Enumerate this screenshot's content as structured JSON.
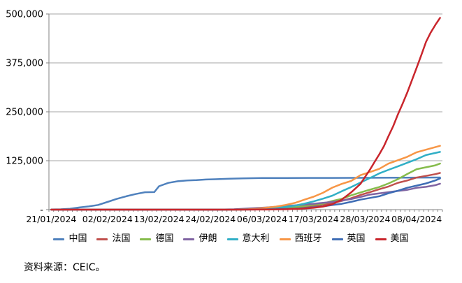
{
  "source_note": "资料来源：CEIC。",
  "colors": {
    "gridline": "#A6A6A6",
    "axis": "#808080",
    "text": "#000000",
    "background": "#FFFFFF"
  },
  "chart_data": {
    "type": "line",
    "title": "",
    "xlabel": "",
    "ylabel": "",
    "grid": true,
    "legend_position": "bottom",
    "y_axis": {
      "min": 0,
      "max": 500000,
      "tick_interval": 125000,
      "tick_labels_bottom_to_top": [
        "-",
        "125,000",
        "250,000",
        "375,000",
        "500,000"
      ]
    },
    "x_axis": {
      "slots": 84,
      "minor_tick_every_days": 1,
      "tick_labels": [
        {
          "day": 0,
          "label": "21/01/2024"
        },
        {
          "day": 12,
          "label": "02/02/2024"
        },
        {
          "day": 23,
          "label": "13/02/2024"
        },
        {
          "day": 34,
          "label": "24/02/2024"
        },
        {
          "day": 45,
          "label": "06/03/2024"
        },
        {
          "day": 56,
          "label": "17/03/2024"
        },
        {
          "day": 67,
          "label": "28/03/2024"
        },
        {
          "day": 78,
          "label": "08/04/2024"
        }
      ]
    },
    "series": [
      {
        "id": "china",
        "name": "中国",
        "color": "#4F81BD",
        "points": [
          [
            0,
            440
          ],
          [
            2,
            920
          ],
          [
            4,
            2075
          ],
          [
            6,
            5509
          ],
          [
            8,
            8141
          ],
          [
            10,
            11891
          ],
          [
            12,
            19716
          ],
          [
            14,
            27440
          ],
          [
            16,
            34110
          ],
          [
            18,
            39829
          ],
          [
            20,
            44386
          ],
          [
            22,
            44759
          ],
          [
            23,
            59895
          ],
          [
            25,
            68413
          ],
          [
            27,
            72434
          ],
          [
            29,
            74619
          ],
          [
            31,
            75550
          ],
          [
            33,
            77022
          ],
          [
            35,
            77754
          ],
          [
            38,
            78928
          ],
          [
            41,
            80026
          ],
          [
            45,
            80652
          ],
          [
            50,
            80757
          ],
          [
            55,
            80991
          ],
          [
            60,
            81054
          ],
          [
            65,
            81285
          ],
          [
            70,
            81470
          ],
          [
            75,
            81669
          ],
          [
            80,
            81907
          ],
          [
            83,
            82160
          ]
        ]
      },
      {
        "id": "france",
        "name": "法国",
        "color": "#C0504D",
        "points": [
          [
            0,
            0
          ],
          [
            20,
            11
          ],
          [
            30,
            57
          ],
          [
            36,
            100
          ],
          [
            39,
            191
          ],
          [
            42,
            653
          ],
          [
            45,
            949
          ],
          [
            48,
            1784
          ],
          [
            51,
            3661
          ],
          [
            54,
            6633
          ],
          [
            56,
            9134
          ],
          [
            58,
            12612
          ],
          [
            60,
            16689
          ],
          [
            62,
            22304
          ],
          [
            64,
            29155
          ],
          [
            66,
            37575
          ],
          [
            68,
            44550
          ],
          [
            70,
            52128
          ],
          [
            72,
            59105
          ],
          [
            74,
            68605
          ],
          [
            76,
            74390
          ],
          [
            78,
            82048
          ],
          [
            80,
            86334
          ],
          [
            82,
            90676
          ],
          [
            83,
            93790
          ]
        ]
      },
      {
        "id": "germany",
        "name": "德国",
        "color": "#86BC4C",
        "points": [
          [
            0,
            0
          ],
          [
            7,
            4
          ],
          [
            14,
            12
          ],
          [
            21,
            16
          ],
          [
            28,
            16
          ],
          [
            32,
            26
          ],
          [
            35,
            48
          ],
          [
            38,
            79
          ],
          [
            41,
            196
          ],
          [
            44,
            670
          ],
          [
            47,
            1457
          ],
          [
            50,
            3675
          ],
          [
            53,
            7272
          ],
          [
            56,
            12327
          ],
          [
            58,
            15320
          ],
          [
            60,
            22213
          ],
          [
            62,
            27436
          ],
          [
            64,
            36508
          ],
          [
            66,
            43938
          ],
          [
            68,
            50871
          ],
          [
            70,
            57695
          ],
          [
            72,
            67051
          ],
          [
            74,
            77872
          ],
          [
            76,
            91159
          ],
          [
            78,
            103374
          ],
          [
            80,
            108202
          ],
          [
            82,
            113296
          ],
          [
            83,
            117658
          ]
        ]
      },
      {
        "id": "iran",
        "name": "伊朗",
        "color": "#8064A2",
        "points": [
          [
            0,
            0
          ],
          [
            28,
            0
          ],
          [
            30,
            2
          ],
          [
            33,
            43
          ],
          [
            36,
            245
          ],
          [
            39,
            978
          ],
          [
            42,
            2922
          ],
          [
            45,
            4747
          ],
          [
            48,
            7161
          ],
          [
            51,
            10075
          ],
          [
            54,
            12729
          ],
          [
            56,
            14991
          ],
          [
            58,
            17361
          ],
          [
            60,
            19644
          ],
          [
            62,
            23049
          ],
          [
            64,
            27017
          ],
          [
            66,
            32332
          ],
          [
            68,
            38309
          ],
          [
            70,
            41495
          ],
          [
            72,
            44605
          ],
          [
            74,
            47593
          ],
          [
            76,
            50468
          ],
          [
            78,
            55743
          ],
          [
            80,
            58226
          ],
          [
            82,
            62589
          ],
          [
            83,
            66200
          ]
        ]
      },
      {
        "id": "italy",
        "name": "意大利",
        "color": "#31AFC6",
        "points": [
          [
            0,
            0
          ],
          [
            10,
            2
          ],
          [
            20,
            3
          ],
          [
            30,
            3
          ],
          [
            33,
            20
          ],
          [
            36,
            62
          ],
          [
            38,
            155
          ],
          [
            40,
            453
          ],
          [
            42,
            1128
          ],
          [
            44,
            2036
          ],
          [
            46,
            3089
          ],
          [
            48,
            4636
          ],
          [
            50,
            7375
          ],
          [
            52,
            10149
          ],
          [
            54,
            15113
          ],
          [
            56,
            21157
          ],
          [
            58,
            27980
          ],
          [
            60,
            35713
          ],
          [
            62,
            47021
          ],
          [
            64,
            57521
          ],
          [
            66,
            69176
          ],
          [
            68,
            80589
          ],
          [
            70,
            92472
          ],
          [
            72,
            101739
          ],
          [
            74,
            110574
          ],
          [
            76,
            119827
          ],
          [
            78,
            128948
          ],
          [
            80,
            139422
          ],
          [
            83,
            147577
          ]
        ]
      },
      {
        "id": "spain",
        "name": "西班牙",
        "color": "#F79646",
        "points": [
          [
            0,
            0
          ],
          [
            25,
            2
          ],
          [
            30,
            45
          ],
          [
            33,
            84
          ],
          [
            36,
            120
          ],
          [
            39,
            400
          ],
          [
            42,
            1073
          ],
          [
            44,
            2277
          ],
          [
            46,
            5232
          ],
          [
            48,
            7798
          ],
          [
            50,
            11748
          ],
          [
            52,
            17147
          ],
          [
            54,
            25374
          ],
          [
            56,
            33089
          ],
          [
            58,
            43079
          ],
          [
            60,
            56188
          ],
          [
            62,
            65719
          ],
          [
            64,
            73235
          ],
          [
            66,
            87956
          ],
          [
            68,
            95923
          ],
          [
            70,
            104118
          ],
          [
            72,
            117710
          ],
          [
            74,
            126168
          ],
          [
            76,
            135032
          ],
          [
            78,
            146690
          ],
          [
            80,
            153222
          ],
          [
            83,
            163027
          ]
        ]
      },
      {
        "id": "uk",
        "name": "英国",
        "color": "#3F6DB5",
        "points": [
          [
            0,
            0
          ],
          [
            10,
            2
          ],
          [
            20,
            9
          ],
          [
            30,
            20
          ],
          [
            33,
            36
          ],
          [
            36,
            51
          ],
          [
            39,
            115
          ],
          [
            42,
            206
          ],
          [
            44,
            456
          ],
          [
            46,
            798
          ],
          [
            48,
            1140
          ],
          [
            50,
            1950
          ],
          [
            52,
            2716
          ],
          [
            54,
            4014
          ],
          [
            56,
            5741
          ],
          [
            58,
            8164
          ],
          [
            60,
            11812
          ],
          [
            62,
            14745
          ],
          [
            64,
            19780
          ],
          [
            66,
            25481
          ],
          [
            68,
            29865
          ],
          [
            70,
            34173
          ],
          [
            72,
            41903
          ],
          [
            74,
            48440
          ],
          [
            76,
            55949
          ],
          [
            78,
            61474
          ],
          [
            80,
            66906
          ],
          [
            82,
            74605
          ],
          [
            83,
            79874
          ]
        ]
      },
      {
        "id": "usa",
        "name": "美国",
        "color": "#C9252C",
        "points": [
          [
            0,
            1
          ],
          [
            20,
            13
          ],
          [
            30,
            16
          ],
          [
            36,
            19
          ],
          [
            40,
            68
          ],
          [
            44,
            213
          ],
          [
            47,
            444
          ],
          [
            50,
            959
          ],
          [
            53,
            2179
          ],
          [
            56,
            4632
          ],
          [
            58,
            7786
          ],
          [
            60,
            13677
          ],
          [
            62,
            25489
          ],
          [
            64,
            43847
          ],
          [
            66,
            65778
          ],
          [
            67,
            83836
          ],
          [
            68,
            101657
          ],
          [
            69,
            121478
          ],
          [
            70,
            140886
          ],
          [
            71,
            161807
          ],
          [
            72,
            188172
          ],
          [
            73,
            213372
          ],
          [
            74,
            243453
          ],
          [
            75,
            270473
          ],
          [
            76,
            299306
          ],
          [
            77,
            330891
          ],
          [
            78,
            362759
          ],
          [
            79,
            395030
          ],
          [
            80,
            428654
          ],
          [
            81,
            452582
          ],
          [
            82,
            472103
          ],
          [
            83,
            490000
          ]
        ]
      }
    ]
  }
}
